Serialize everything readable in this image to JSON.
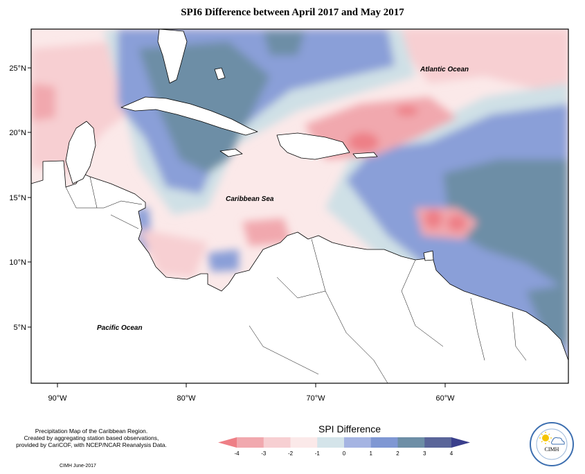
{
  "title": "SPI6 Difference between April 2017 and May 2017",
  "latitude_labels": [
    "25°N",
    "20°N",
    "15°N",
    "10°N",
    "5°N"
  ],
  "longitude_labels": [
    "90°W",
    "80°W",
    "70°W",
    "60°W"
  ],
  "place_labels": {
    "atlantic": "Atlantic Ocean",
    "caribbean": "Caribbean Sea",
    "pacific": "Pacific Ocean"
  },
  "credit_lines": [
    "Precipitation Map of the Caribbean Region.",
    "Created by aggregating station based observations,",
    "provided by CariCOF, with NCEP/NCAR Reanalysis Data."
  ],
  "issued": "CIMH June-2017",
  "legend": {
    "title": "SPI Difference",
    "ticks": [
      "-4",
      "-3",
      "-2",
      "-1",
      "0",
      "1",
      "2",
      "3",
      "4"
    ],
    "colors": [
      "#ee7f86",
      "#f1a8ae",
      "#f7cfd2",
      "#fbe9e9",
      "#d4e4ea",
      "#a5b4e2",
      "#7f97d3",
      "#6d8ea6",
      "#5a6599",
      "#3a3f8c"
    ]
  },
  "logo": {
    "text": "CIMH",
    "icon": "sun-cloud-logo-icon"
  },
  "colors": {
    "land": "#ffffff",
    "coast": "#000000",
    "dry_strong": "#ee7f86",
    "dry": "#f1a8ae",
    "dry_light": "#f7cfd2",
    "neutral": "#fbe9e9",
    "wet_light": "#cfe0e6",
    "wet": "#8a9fd8",
    "wet_strong": "#6d8ea6"
  }
}
